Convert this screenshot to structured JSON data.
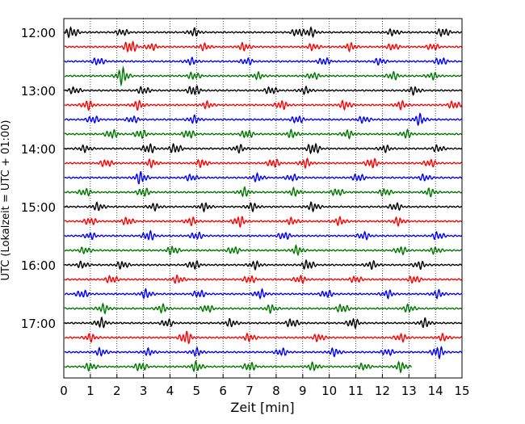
{
  "chart_data": {
    "type": "line",
    "title": "",
    "xlabel": "Zeit  [min]",
    "ylabel": "UTC (Lokalzeit = UTC + 01:00)",
    "xlim": [
      0,
      15
    ],
    "x_ticks": [
      "0",
      "1",
      "2",
      "3",
      "4",
      "5",
      "6",
      "7",
      "8",
      "9",
      "10",
      "11",
      "12",
      "13",
      "14",
      "15"
    ],
    "y_tick_labels": [
      "12:00",
      "13:00",
      "14:00",
      "15:00",
      "16:00",
      "17:00"
    ],
    "grid": "vertical dotted",
    "trace_interval_minutes": 15,
    "trace_colors": [
      "#000000",
      "#ff0000",
      "#0000ff",
      "#007700"
    ],
    "traces": [
      {
        "start": "12:00",
        "color": "#000000",
        "end_min": 15,
        "bursts": [
          [
            0.3,
            0.5
          ],
          [
            2.2,
            0.3
          ],
          [
            4.9,
            0.35
          ],
          [
            8.8,
            0.35
          ],
          [
            9.3,
            0.4
          ],
          [
            12.4,
            0.3
          ],
          [
            14.3,
            0.4
          ]
        ]
      },
      {
        "start": "12:15",
        "color": "#ff0000",
        "end_min": 15,
        "bursts": [
          [
            2.5,
            0.6
          ],
          [
            3.3,
            0.3
          ],
          [
            5.3,
            0.3
          ],
          [
            6.8,
            0.35
          ],
          [
            9.4,
            0.3
          ],
          [
            10.8,
            0.35
          ],
          [
            12.4,
            0.3
          ],
          [
            13.9,
            0.3
          ]
        ]
      },
      {
        "start": "12:30",
        "color": "#0000ff",
        "end_min": 15,
        "bursts": [
          [
            1.3,
            0.35
          ],
          [
            4.8,
            0.3
          ],
          [
            6.9,
            0.3
          ],
          [
            9.8,
            0.35
          ],
          [
            11.9,
            0.3
          ],
          [
            14.2,
            0.35
          ]
        ]
      },
      {
        "start": "12:45",
        "color": "#007700",
        "end_min": 15,
        "bursts": [
          [
            2.2,
            0.75
          ],
          [
            4.9,
            0.35
          ],
          [
            7.3,
            0.3
          ],
          [
            9.4,
            0.3
          ],
          [
            12.4,
            0.35
          ],
          [
            13.9,
            0.3
          ]
        ]
      },
      {
        "start": "13:00",
        "color": "#000000",
        "end_min": 15,
        "bursts": [
          [
            0.4,
            0.3
          ],
          [
            3.0,
            0.35
          ],
          [
            4.9,
            0.5
          ],
          [
            7.8,
            0.35
          ],
          [
            9.1,
            0.3
          ],
          [
            13.2,
            0.35
          ]
        ]
      },
      {
        "start": "13:15",
        "color": "#ff0000",
        "end_min": 15,
        "bursts": [
          [
            0.9,
            0.4
          ],
          [
            2.8,
            0.4
          ],
          [
            5.4,
            0.3
          ],
          [
            8.2,
            0.4
          ],
          [
            10.6,
            0.4
          ],
          [
            12.7,
            0.35
          ],
          [
            14.7,
            0.35
          ]
        ]
      },
      {
        "start": "13:30",
        "color": "#0000ff",
        "end_min": 15,
        "bursts": [
          [
            1.1,
            0.35
          ],
          [
            2.6,
            0.3
          ],
          [
            4.9,
            0.35
          ],
          [
            8.8,
            0.35
          ],
          [
            11.3,
            0.3
          ],
          [
            13.4,
            0.5
          ]
        ]
      },
      {
        "start": "13:45",
        "color": "#007700",
        "end_min": 15,
        "bursts": [
          [
            1.8,
            0.4
          ],
          [
            2.9,
            0.4
          ],
          [
            4.7,
            0.4
          ],
          [
            6.9,
            0.4
          ],
          [
            8.6,
            0.35
          ],
          [
            10.7,
            0.35
          ],
          [
            12.9,
            0.35
          ]
        ]
      },
      {
        "start": "14:00",
        "color": "#000000",
        "end_min": 15,
        "bursts": [
          [
            0.8,
            0.3
          ],
          [
            3.2,
            0.45
          ],
          [
            4.2,
            0.45
          ],
          [
            6.6,
            0.35
          ],
          [
            9.4,
            0.55
          ],
          [
            12.1,
            0.3
          ],
          [
            14.1,
            0.3
          ]
        ]
      },
      {
        "start": "14:15",
        "color": "#ff0000",
        "end_min": 15,
        "bursts": [
          [
            1.6,
            0.35
          ],
          [
            3.3,
            0.35
          ],
          [
            5.2,
            0.35
          ],
          [
            7.9,
            0.4
          ],
          [
            9.1,
            0.4
          ],
          [
            11.6,
            0.45
          ],
          [
            13.8,
            0.35
          ]
        ]
      },
      {
        "start": "14:30",
        "color": "#0000ff",
        "end_min": 15,
        "bursts": [
          [
            2.9,
            0.55
          ],
          [
            4.8,
            0.3
          ],
          [
            7.3,
            0.35
          ],
          [
            8.6,
            0.3
          ],
          [
            11.1,
            0.35
          ],
          [
            13.6,
            0.3
          ]
        ]
      },
      {
        "start": "14:45",
        "color": "#007700",
        "end_min": 15,
        "bursts": [
          [
            0.8,
            0.35
          ],
          [
            3.0,
            0.4
          ],
          [
            6.8,
            0.4
          ],
          [
            8.7,
            0.35
          ],
          [
            10.3,
            0.35
          ],
          [
            12.1,
            0.35
          ],
          [
            13.8,
            0.35
          ]
        ]
      },
      {
        "start": "15:00",
        "color": "#000000",
        "end_min": 15,
        "bursts": [
          [
            1.3,
            0.35
          ],
          [
            3.4,
            0.3
          ],
          [
            5.3,
            0.35
          ],
          [
            7.1,
            0.35
          ],
          [
            9.4,
            0.4
          ],
          [
            12.5,
            0.35
          ]
        ]
      },
      {
        "start": "15:15",
        "color": "#ff0000",
        "end_min": 15,
        "bursts": [
          [
            1.0,
            0.35
          ],
          [
            2.4,
            0.35
          ],
          [
            4.8,
            0.35
          ],
          [
            6.6,
            0.5
          ],
          [
            8.6,
            0.3
          ],
          [
            10.4,
            0.35
          ],
          [
            12.6,
            0.35
          ]
        ]
      },
      {
        "start": "15:30",
        "color": "#0000ff",
        "end_min": 15,
        "bursts": [
          [
            1.0,
            0.3
          ],
          [
            3.2,
            0.45
          ],
          [
            5.0,
            0.35
          ],
          [
            8.3,
            0.35
          ],
          [
            11.3,
            0.35
          ],
          [
            14.1,
            0.35
          ]
        ]
      },
      {
        "start": "15:45",
        "color": "#007700",
        "end_min": 15,
        "bursts": [
          [
            0.8,
            0.3
          ],
          [
            4.1,
            0.4
          ],
          [
            6.4,
            0.35
          ],
          [
            8.8,
            0.4
          ],
          [
            12.7,
            0.35
          ],
          [
            14.0,
            0.3
          ]
        ]
      },
      {
        "start": "16:00",
        "color": "#000000",
        "end_min": 15,
        "bursts": [
          [
            0.7,
            0.3
          ],
          [
            2.2,
            0.35
          ],
          [
            4.9,
            0.4
          ],
          [
            7.2,
            0.35
          ],
          [
            9.2,
            0.45
          ],
          [
            11.6,
            0.35
          ],
          [
            13.4,
            0.35
          ]
        ]
      },
      {
        "start": "16:15",
        "color": "#ff0000",
        "end_min": 15,
        "bursts": [
          [
            1.8,
            0.35
          ],
          [
            4.3,
            0.35
          ],
          [
            7.0,
            0.35
          ],
          [
            8.9,
            0.35
          ],
          [
            11.0,
            0.3
          ],
          [
            13.2,
            0.35
          ]
        ]
      },
      {
        "start": "16:30",
        "color": "#0000ff",
        "end_min": 15,
        "bursts": [
          [
            0.7,
            0.35
          ],
          [
            3.1,
            0.4
          ],
          [
            5.1,
            0.35
          ],
          [
            7.4,
            0.4
          ],
          [
            9.9,
            0.35
          ],
          [
            12.2,
            0.35
          ],
          [
            14.1,
            0.35
          ]
        ]
      },
      {
        "start": "16:45",
        "color": "#007700",
        "end_min": 15,
        "bursts": [
          [
            1.5,
            0.4
          ],
          [
            3.7,
            0.35
          ],
          [
            5.4,
            0.35
          ],
          [
            7.8,
            0.35
          ],
          [
            10.5,
            0.4
          ],
          [
            13.0,
            0.35
          ]
        ]
      },
      {
        "start": "17:00",
        "color": "#000000",
        "end_min": 15,
        "bursts": [
          [
            1.4,
            0.45
          ],
          [
            3.9,
            0.35
          ],
          [
            6.3,
            0.35
          ],
          [
            8.6,
            0.4
          ],
          [
            10.9,
            0.45
          ],
          [
            13.6,
            0.4
          ]
        ]
      },
      {
        "start": "17:15",
        "color": "#ff0000",
        "end_min": 15,
        "bursts": [
          [
            1.0,
            0.35
          ],
          [
            4.6,
            0.6
          ],
          [
            7.0,
            0.35
          ],
          [
            9.6,
            0.35
          ],
          [
            12.7,
            0.35
          ],
          [
            14.3,
            0.3
          ]
        ]
      },
      {
        "start": "17:30",
        "color": "#0000ff",
        "end_min": 15,
        "bursts": [
          [
            1.4,
            0.35
          ],
          [
            3.2,
            0.3
          ],
          [
            5.0,
            0.35
          ],
          [
            8.2,
            0.35
          ],
          [
            10.2,
            0.35
          ],
          [
            12.2,
            0.3
          ],
          [
            14.1,
            0.55
          ]
        ]
      },
      {
        "start": "17:45",
        "color": "#007700",
        "end_min": 13.1,
        "bursts": [
          [
            1.0,
            0.35
          ],
          [
            2.9,
            0.4
          ],
          [
            5.0,
            0.45
          ],
          [
            7.0,
            0.4
          ],
          [
            9.4,
            0.35
          ],
          [
            11.3,
            0.3
          ],
          [
            12.7,
            0.45
          ]
        ]
      }
    ]
  }
}
